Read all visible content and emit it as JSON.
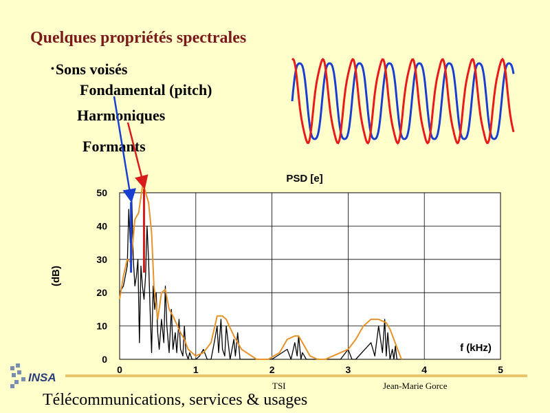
{
  "slide": {
    "title": "Quelques propriétés spectrales",
    "bullet": "Sons voisés",
    "bullet_marker": "•",
    "item_fundamental": "Fondamental (pitch)",
    "item_harmonics": "Harmoniques",
    "item_formants": "Formants"
  },
  "footer": {
    "tsi": "TSI",
    "author": "Jean-Marie Gorce",
    "subtitle": "Télécommunications, services & usages",
    "logo_text": "INSA"
  },
  "chart_data": {
    "type": "line",
    "title": "PSD [e]",
    "xlabel": "f (kHz)",
    "ylabel": "(dB)",
    "xlim": [
      0,
      5
    ],
    "ylim": [
      0,
      50
    ],
    "x_ticks": [
      0,
      1,
      2,
      3,
      4,
      5
    ],
    "y_ticks": [
      0,
      10,
      20,
      30,
      40,
      50
    ],
    "grid": true,
    "series": [
      {
        "color": "#000000",
        "x": [
          0,
          0.05,
          0.1,
          0.12,
          0.14,
          0.16,
          0.18,
          0.2,
          0.22,
          0.24,
          0.26,
          0.28,
          0.3,
          0.32,
          0.34,
          0.36,
          0.38,
          0.4,
          0.42,
          0.44,
          0.46,
          0.48,
          0.5,
          0.52,
          0.55,
          0.58,
          0.6,
          0.62,
          0.65,
          0.68,
          0.7,
          0.73,
          0.75,
          0.78,
          0.8,
          0.83,
          0.85,
          0.87,
          0.9,
          0.92,
          0.95,
          1.0,
          1.05,
          1.1,
          1.15,
          1.2,
          1.25,
          1.28,
          1.3,
          1.33,
          1.35,
          1.38,
          1.4,
          1.45,
          1.5,
          1.52,
          1.55,
          1.58,
          1.6,
          2.0,
          2.2,
          2.25,
          2.3,
          2.33,
          2.35,
          2.38,
          2.4,
          2.45,
          2.5,
          2.9,
          3.0,
          3.05,
          3.1,
          3.3,
          3.35,
          3.4,
          3.45,
          3.48,
          3.5,
          3.52,
          3.55,
          3.58,
          3.6,
          3.62,
          3.64,
          3.66,
          3.7
        ],
        "y": [
          20,
          22,
          28,
          45,
          35,
          48,
          30,
          22,
          25,
          30,
          5,
          28,
          22,
          18,
          25,
          40,
          30,
          15,
          2,
          22,
          15,
          20,
          8,
          3,
          12,
          5,
          22,
          10,
          2,
          15,
          3,
          8,
          2,
          12,
          3,
          1,
          10,
          2,
          0,
          2,
          0,
          0,
          1,
          3,
          0,
          0,
          6,
          10,
          2,
          12,
          3,
          1,
          10,
          0,
          6,
          1,
          8,
          0,
          0,
          0,
          3,
          0,
          5,
          1,
          7,
          0,
          2,
          0,
          0,
          0,
          3,
          0,
          0,
          5,
          1,
          10,
          2,
          12,
          1,
          8,
          0,
          3,
          0,
          4,
          0,
          0,
          0
        ]
      },
      {
        "color": "#e8922a",
        "x": [
          0,
          0.05,
          0.1,
          0.15,
          0.2,
          0.25,
          0.3,
          0.33,
          0.38,
          0.42,
          0.45,
          0.5,
          0.55,
          0.6,
          0.65,
          0.7,
          0.8,
          0.85,
          0.9,
          1.0,
          1.1,
          1.2,
          1.28,
          1.35,
          1.4,
          1.5,
          1.6,
          1.8,
          1.95,
          2.1,
          2.2,
          2.3,
          2.35,
          2.4,
          2.5,
          2.6,
          2.7,
          2.8,
          2.9,
          3.0,
          3.1,
          3.2,
          3.3,
          3.4,
          3.5,
          3.55,
          3.6,
          3.65,
          3.7
        ],
        "y": [
          18,
          25,
          30,
          29,
          42,
          44,
          52,
          51,
          47,
          38,
          22,
          12,
          20,
          21,
          15,
          13,
          8,
          6,
          3,
          1,
          2,
          5,
          13,
          13,
          12,
          7,
          3,
          0,
          0,
          2,
          6,
          7,
          7,
          5,
          1,
          0,
          0,
          1,
          2,
          3,
          6,
          10,
          12,
          12,
          11,
          9,
          6,
          3,
          0
        ]
      }
    ],
    "annotations": [
      {
        "text": "Fondamental (pitch)",
        "color": "#1a3fd0",
        "target_x": 0.15,
        "target_y": 48
      },
      {
        "text": "Harmoniques",
        "color": "#d81a1a",
        "target_x": 0.32,
        "target_y": 52
      }
    ]
  },
  "wave_data": {
    "series": [
      {
        "color": "#1a3fd0",
        "cycles": 7.4,
        "phase": 0.0
      },
      {
        "color": "#e81a1a",
        "cycles": 7.4,
        "phase": 1.6
      }
    ]
  }
}
